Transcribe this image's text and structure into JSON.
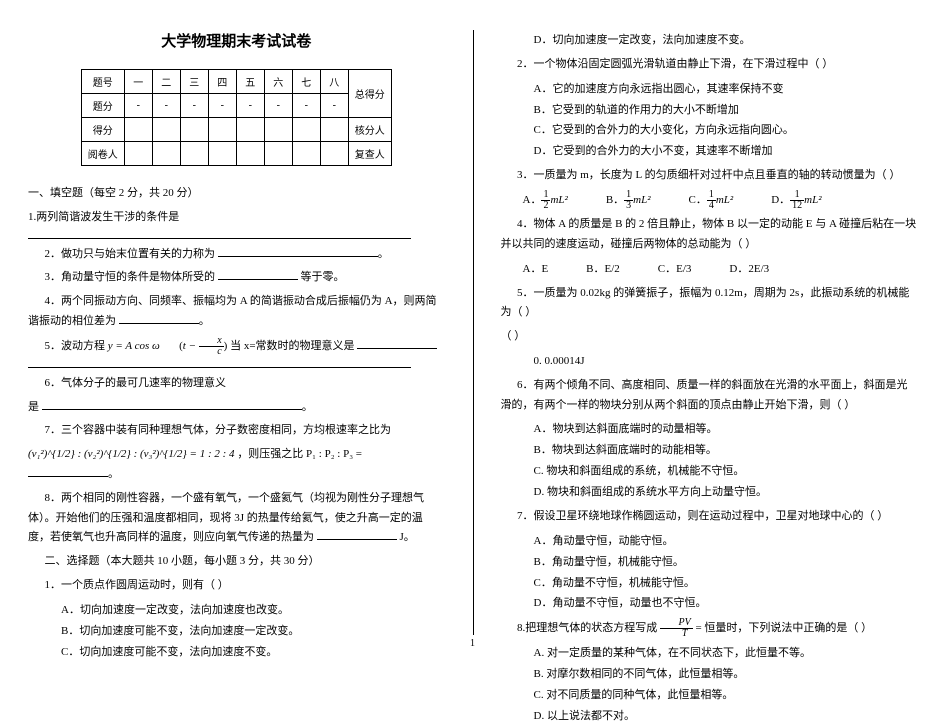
{
  "title": "大学物理期末考试试卷",
  "score_table": {
    "row_labels": [
      "题号",
      "题分",
      "得分",
      "阅卷人"
    ],
    "cols": [
      "一",
      "二",
      "三",
      "四",
      "五",
      "六",
      "七",
      "八"
    ],
    "total_label": "总得分",
    "side_labels": [
      "核分人",
      "复查人"
    ]
  },
  "sec1": {
    "head": "一、填空题（每空 2 分，共 20 分）",
    "q1": "1.两列简谐波发生干涉的条件是",
    "q2": "2．做功只与始末位置有关的力称为",
    "q3_a": "3．角动量守恒的条件是物体所受的",
    "q3_b": "等于零。",
    "q4_a": "4．两个同振动方向、同频率、振幅均为 A 的简谐振动合成后振幅仍为 A，则两简谐振动的相位差为",
    "q5_a": "5．波动方程 ",
    "q5_eq1": "y = A cos ω",
    "q5_eq2_l": "t − ",
    "q5_eq2_num": "x",
    "q5_eq2_den": "c",
    "q5_b": " 当 x=常数时的物理意义是",
    "q6_a": "6．气体分子的最可几速率的物理意义",
    "q6_b": "是",
    "q7_a": "7．三个容器中装有同种理想气体，分子数密度相同，方均根速率之比为",
    "q7_eq": "(v₁²)^{1/2} : (v₂²)^{1/2} : (v₃²)^{1/2} = 1 : 2 : 4",
    "q7_b": "，则压强之比 P₁ : P₂ : P₃ =",
    "q8": "8．两个相同的刚性容器，一个盛有氧气，一个盛氦气（均视为刚性分子理想气体）。开始他们的压强和温度都相同，现将 3J 的热量传给氦气，使之升高一定的温度，若使氧气也升高同样的温度，则应向氧气传递的热量为",
    "q8_end": "J。"
  },
  "sec2": {
    "head": "二、选择题（本大题共 10 小题，每小题 3 分，共 30 分）",
    "q1": "1．一个质点作圆周运动时，则有（   ）",
    "q1o": {
      "A": "A．切向加速度一定改变，法向加速度也改变。",
      "B": "B．切向加速度可能不变，法向加速度一定改变。",
      "C": "C．切向加速度可能不变，法向加速度不变。",
      "D": "D．切向加速度一定改变，法向加速度不变。"
    },
    "q2": "2．一个物体沿固定圆弧光滑轨道由静止下滑，在下滑过程中（   ）",
    "q2o": {
      "A": "A．它的加速度方向永远指出圆心，其速率保持不变",
      "B": "B．它受到的轨道的作用力的大小不断增加",
      "C": "C．它受到的合外力的大小变化，方向永远指向圆心。",
      "D": "D．它受到的合外力的大小不变，其速率不断增加"
    },
    "q3": "3．一质量为 m，长度为 L 的匀质细杆对过杆中点且垂直的轴的转动惯量为（   ）",
    "q3o": {
      "A": "A．",
      "B": "B．",
      "C": "C．",
      "D": "D．"
    },
    "q3f": {
      "An": "1",
      "Ad": "2",
      "Bn": "1",
      "Bd": "3",
      "Cn": "1",
      "Cd": "4",
      "Dn": "1",
      "Dd": "12",
      "mL2": "mL²"
    },
    "q4": "4．物体 A 的质量是 B 的 2 倍且静止，物体 B 以一定的动能 E 与 A 碰撞后粘在一块并以共同的速度运动，碰撞后两物体的总动能为（   ）",
    "q4o": {
      "A": "A．E",
      "B": "B．E/2",
      "C": "C．E/3",
      "D": "D．2E/3"
    },
    "q5": "5．一质量为 0.02kg 的弹簧振子，振幅为 0.12m，周期为 2s，此振动系统的机械能为（   ）",
    "q5o": {
      "A": "0. 0.00014J"
    },
    "q6": "6．有两个倾角不同、高度相同、质量一样的斜面放在光滑的水平面上，斜面是光滑的，有两个一样的物块分别从两个斜面的顶点由静止开始下滑，则（   ）",
    "q6o": {
      "A": "A．物块到达斜面底端时的动量相等。",
      "B": "B．物块到达斜面底端时的动能相等。",
      "C": "C. 物块和斜面组成的系统，机械能不守恒。",
      "D": "D. 物块和斜面组成的系统水平方向上动量守恒。"
    },
    "q7": "7．假设卫星环绕地球作椭圆运动，则在运动过程中，卫星对地球中心的（   ）",
    "q7o": {
      "A": "A．角动量守恒，动能守恒。",
      "B": "B．角动量守恒，机械能守恒。",
      "C": "C．角动量不守恒，机械能守恒。",
      "D": "D．角动量不守恒，动量也不守恒。"
    },
    "q8a": "8.把理想气体的状态方程写成 ",
    "q8num": "PV",
    "q8den": "T",
    "q8b": " = 恒量时，下列说法中正确的是（   ）",
    "q8o": {
      "A": "A. 对一定质量的某种气体，在不同状态下，此恒量不等。",
      "B": "B. 对摩尔数相同的不同气体，此恒量相等。",
      "C": "C. 对不同质量的同种气体，此恒量相等。",
      "D": "D. 以上说法都不对。"
    }
  },
  "pagenum": "1"
}
